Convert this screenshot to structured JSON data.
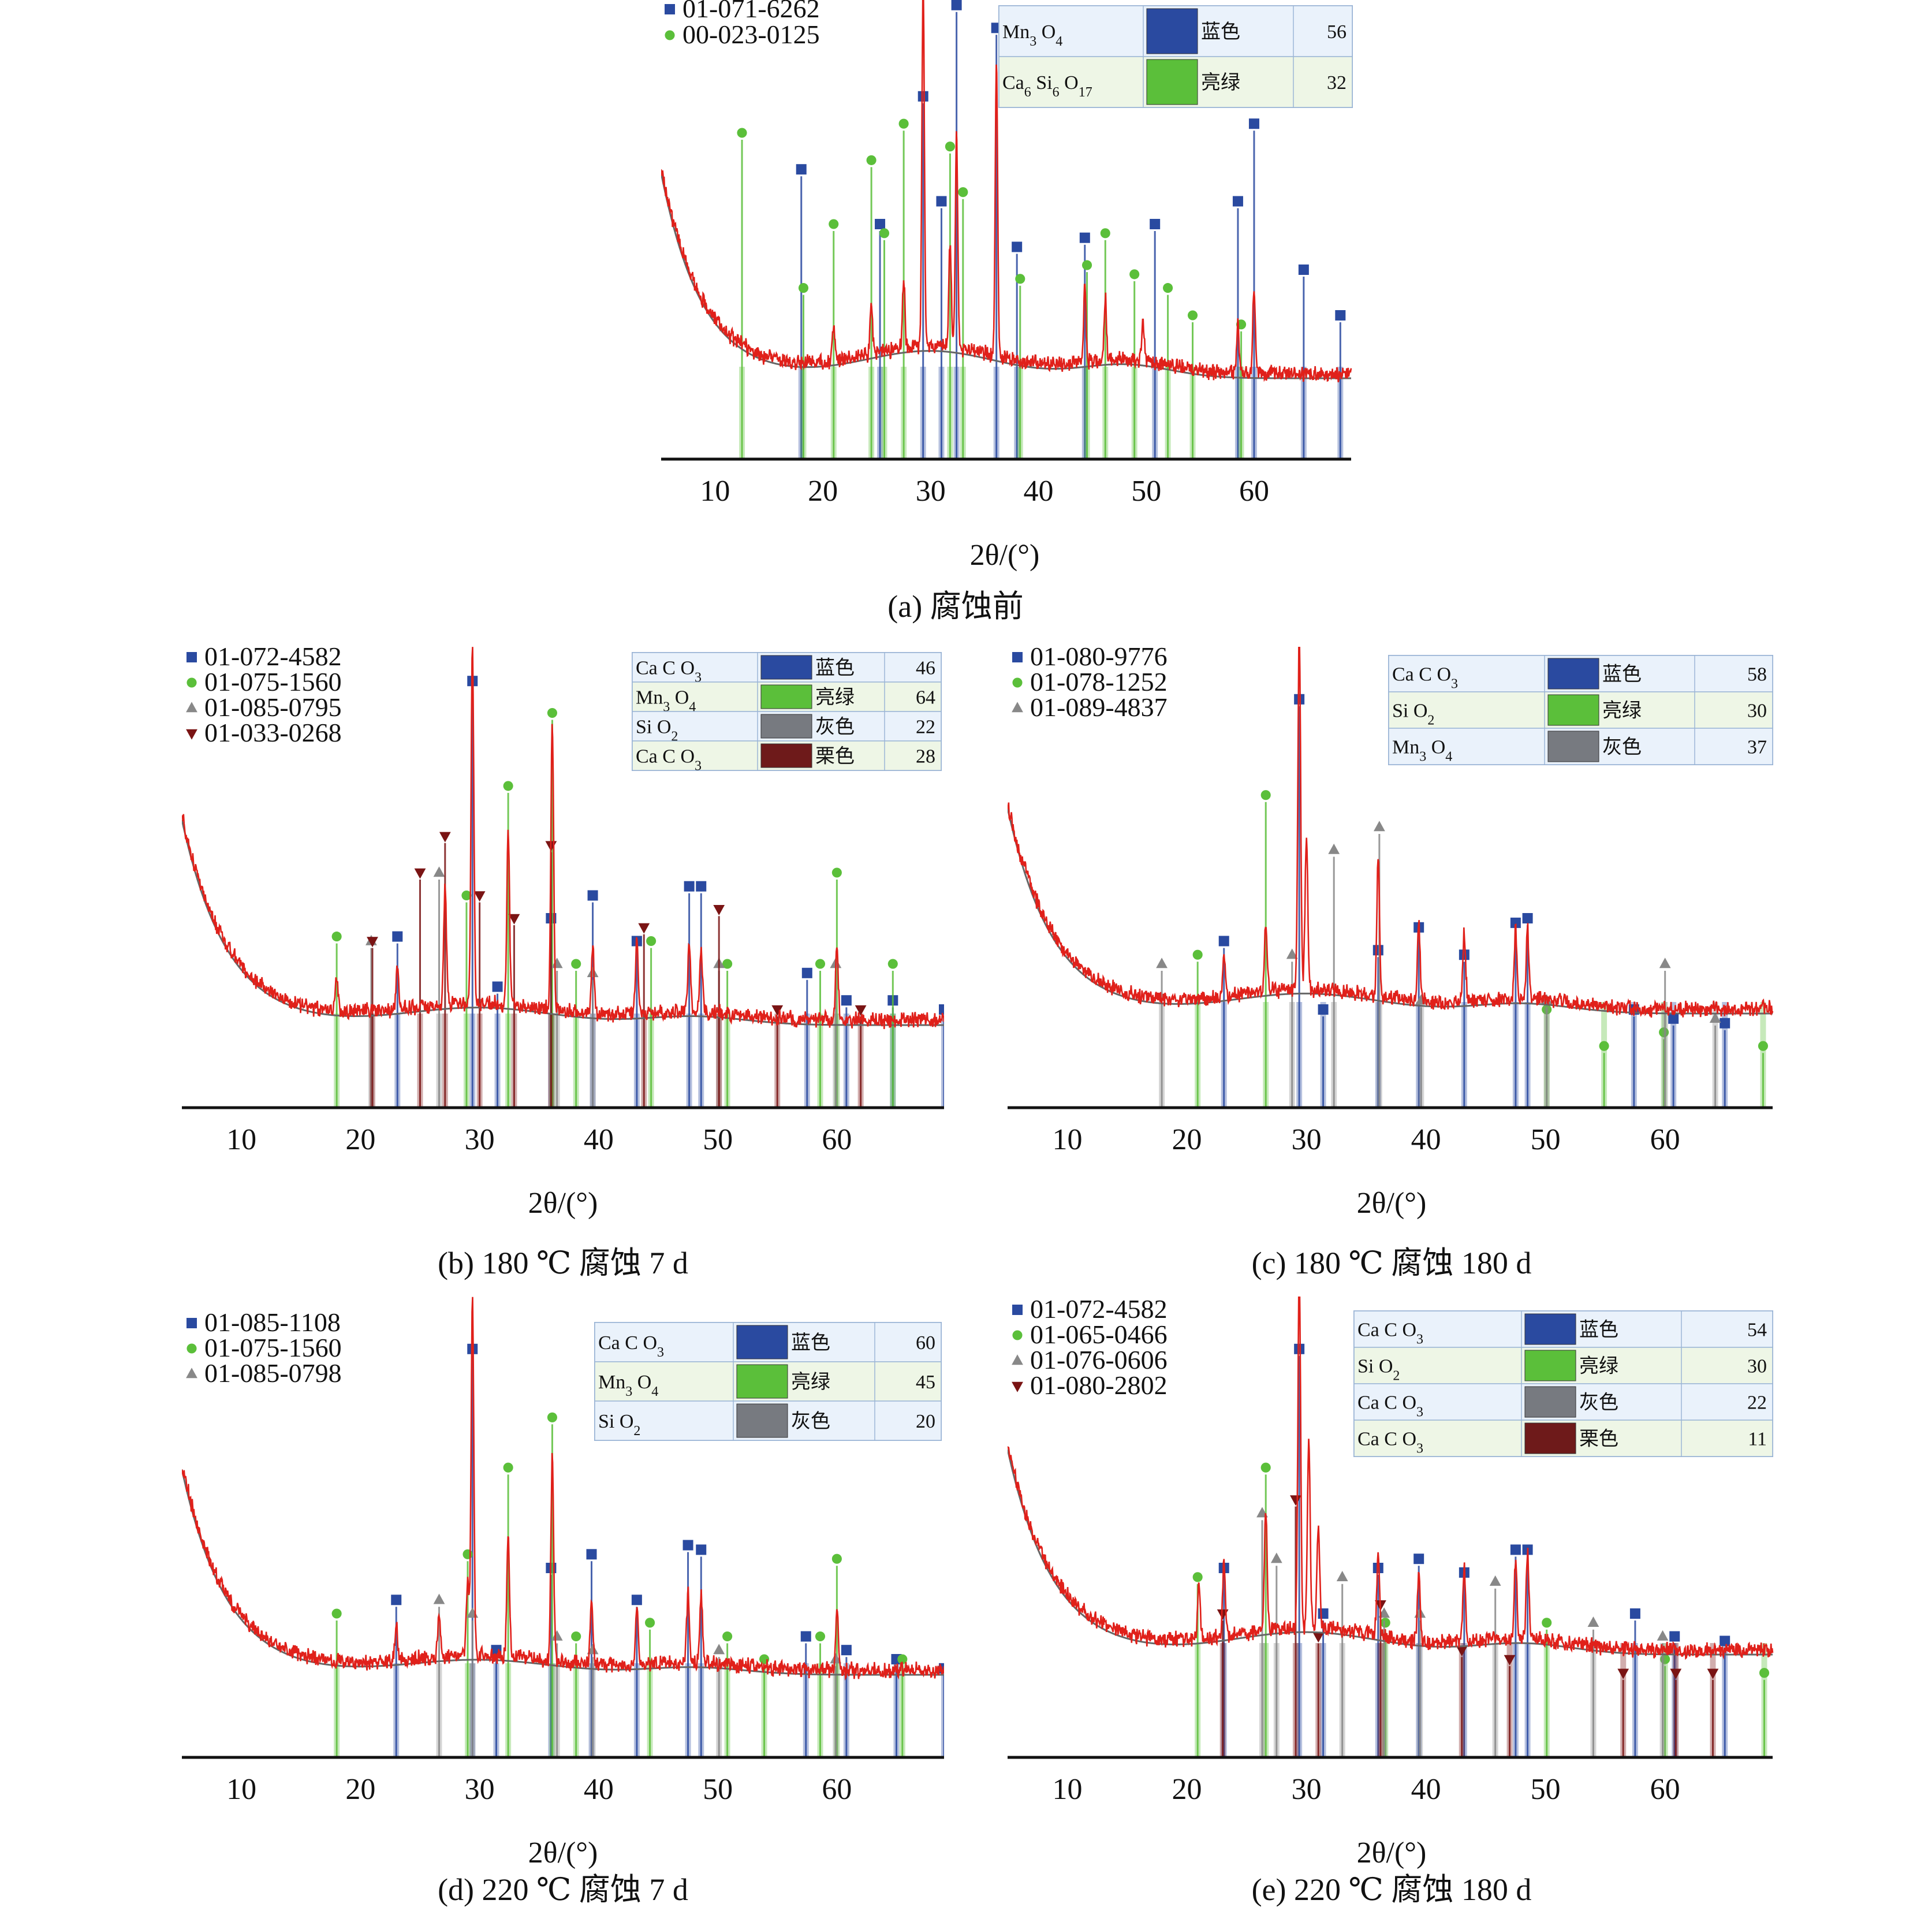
{
  "chart_data": [
    {
      "type": "line",
      "caption": "(a) 腐蚀前",
      "xlabel": "2θ/(°)",
      "xlim": [
        5,
        69
      ],
      "x_ticks": [
        10,
        20,
        30,
        40,
        50,
        60
      ],
      "pattern_refs": [
        "01-071-6262",
        "00-023-0125"
      ],
      "table": [
        {
          "compound": "Mn3 O4",
          "color_name": "蓝色",
          "score": "56",
          "color": "#2a4aa0"
        },
        {
          "compound": "Ca6 Si6 O17",
          "color_name": "亮绿",
          "score": "32",
          "color": "#5bbf3a"
        }
      ],
      "marker_series": [
        {
          "ref": "01-071-6262",
          "shape": "square",
          "color": "#2a4aa0",
          "peaks": [
            [
              18.0,
              0.62
            ],
            [
              25.3,
              0.5
            ],
            [
              29.3,
              0.78
            ],
            [
              31.0,
              0.55
            ],
            [
              32.4,
              0.98
            ],
            [
              36.1,
              0.93
            ],
            [
              38.0,
              0.45
            ],
            [
              44.3,
              0.47
            ],
            [
              50.8,
              0.5
            ],
            [
              58.5,
              0.55
            ],
            [
              60.0,
              0.72
            ],
            [
              64.6,
              0.4
            ],
            [
              68.0,
              0.3
            ]
          ]
        },
        {
          "ref": "00-023-0125",
          "shape": "circle",
          "color": "#5bbf3a",
          "peaks": [
            [
              12.5,
              0.7
            ],
            [
              18.2,
              0.36
            ],
            [
              21.0,
              0.5
            ],
            [
              24.5,
              0.64
            ],
            [
              25.7,
              0.48
            ],
            [
              27.5,
              0.72
            ],
            [
              31.8,
              0.67
            ],
            [
              33.0,
              0.57
            ],
            [
              38.3,
              0.38
            ],
            [
              44.5,
              0.41
            ],
            [
              46.2,
              0.48
            ],
            [
              48.9,
              0.39
            ],
            [
              52.0,
              0.36
            ],
            [
              54.3,
              0.3
            ],
            [
              58.8,
              0.28
            ]
          ]
        }
      ],
      "fluct_peaks": [
        [
          29.3,
          1.05
        ],
        [
          32.4,
          0.62
        ],
        [
          36.1,
          0.85
        ],
        [
          31.8,
          0.3
        ],
        [
          44.3,
          0.22
        ],
        [
          46.2,
          0.18
        ],
        [
          27.5,
          0.2
        ],
        [
          24.5,
          0.15
        ],
        [
          21.0,
          0.1
        ],
        [
          58.5,
          0.15
        ],
        [
          60.0,
          0.25
        ],
        [
          49.7,
          0.12
        ]
      ]
    },
    {
      "type": "line",
      "caption": "(b) 180 ℃ 腐蚀 7 d",
      "xlabel": "2θ/(°)",
      "xlim": [
        5,
        69
      ],
      "x_ticks": [
        10,
        20,
        30,
        40,
        50,
        60
      ],
      "pattern_refs": [
        "01-072-4582",
        "01-075-1560",
        "01-085-0795",
        "01-033-0268"
      ],
      "table": [
        {
          "compound": "Ca C O3",
          "color_name": "蓝色",
          "score": "46",
          "color": "#2a4aa0"
        },
        {
          "compound": "Mn3 O4",
          "color_name": "亮绿",
          "score": "64",
          "color": "#5bbf3a"
        },
        {
          "compound": "Si O2",
          "color_name": "灰色",
          "score": "22",
          "color": "#777a80"
        },
        {
          "compound": "Ca C O3",
          "color_name": "栗色",
          "score": "28",
          "color": "#6e1a1a"
        }
      ],
      "marker_series": [
        {
          "ref": "01-072-4582",
          "shape": "square",
          "color": "#2a4aa0",
          "peaks": [
            [
              23.1,
              0.36
            ],
            [
              29.4,
              0.92
            ],
            [
              31.5,
              0.25
            ],
            [
              36.0,
              0.4
            ],
            [
              39.5,
              0.45
            ],
            [
              43.2,
              0.35
            ],
            [
              47.6,
              0.47
            ],
            [
              48.6,
              0.47
            ],
            [
              57.5,
              0.28
            ],
            [
              60.8,
              0.22
            ],
            [
              64.7,
              0.22
            ],
            [
              69.0,
              0.2
            ]
          ]
        },
        {
          "ref": "01-075-1560",
          "shape": "circle",
          "color": "#5bbf3a",
          "peaks": [
            [
              18.0,
              0.36
            ],
            [
              28.9,
              0.45
            ],
            [
              32.4,
              0.69
            ],
            [
              36.1,
              0.85
            ],
            [
              38.1,
              0.3
            ],
            [
              44.4,
              0.35
            ],
            [
              50.8,
              0.3
            ],
            [
              58.6,
              0.3
            ],
            [
              60.0,
              0.5
            ],
            [
              64.7,
              0.3
            ]
          ]
        },
        {
          "ref": "01-085-0795",
          "shape": "triangle",
          "color": "#888888",
          "peaks": [
            [
              20.9,
              0.35
            ],
            [
              26.6,
              0.5
            ],
            [
              36.5,
              0.3
            ],
            [
              39.5,
              0.28
            ],
            [
              50.1,
              0.3
            ],
            [
              59.9,
              0.3
            ]
          ]
        },
        {
          "ref": "01-033-0268",
          "shape": "triangle-down",
          "color": "#7a1414",
          "peaks": [
            [
              21.0,
              0.35
            ],
            [
              25.0,
              0.5
            ],
            [
              27.1,
              0.58
            ],
            [
              30.0,
              0.45
            ],
            [
              32.9,
              0.4
            ],
            [
              36.0,
              0.56
            ],
            [
              43.8,
              0.38
            ],
            [
              50.1,
              0.42
            ],
            [
              55.0,
              0.2
            ],
            [
              62.0,
              0.2
            ]
          ]
        }
      ],
      "fluct_peaks": [
        [
          29.4,
          1.05
        ],
        [
          36.1,
          0.85
        ],
        [
          32.4,
          0.5
        ],
        [
          27.1,
          0.35
        ],
        [
          39.5,
          0.2
        ],
        [
          43.2,
          0.22
        ],
        [
          47.6,
          0.2
        ],
        [
          48.6,
          0.18
        ],
        [
          60.0,
          0.22
        ],
        [
          23.1,
          0.12
        ],
        [
          18.0,
          0.1
        ]
      ]
    },
    {
      "type": "line",
      "caption": "(c) 180 ℃ 腐蚀 180 d",
      "xlabel": "2θ/(°)",
      "xlim": [
        5,
        69
      ],
      "x_ticks": [
        10,
        20,
        30,
        40,
        50,
        60
      ],
      "pattern_refs": [
        "01-080-9776",
        "01-078-1252",
        "01-089-4837"
      ],
      "table": [
        {
          "compound": "Ca C O3",
          "color_name": "蓝色",
          "score": "58",
          "color": "#2a4aa0"
        },
        {
          "compound": "Si O2",
          "color_name": "亮绿",
          "score": "30",
          "color": "#5bbf3a"
        },
        {
          "compound": "Mn3 O4",
          "color_name": "灰色",
          "score": "37",
          "color": "#777a80"
        }
      ],
      "marker_series": [
        {
          "ref": "01-080-9776",
          "shape": "square",
          "color": "#2a4aa0",
          "peaks": [
            [
              23.1,
              0.35
            ],
            [
              29.4,
              0.88
            ],
            [
              31.4,
              0.2
            ],
            [
              36.0,
              0.33
            ],
            [
              39.4,
              0.38
            ],
            [
              43.2,
              0.32
            ],
            [
              47.5,
              0.39
            ],
            [
              48.5,
              0.4
            ],
            [
              57.4,
              0.2
            ],
            [
              60.7,
              0.18
            ],
            [
              65.0,
              0.17
            ]
          ]
        },
        {
          "ref": "01-078-1252",
          "shape": "circle",
          "color": "#5bbf3a",
          "peaks": [
            [
              20.9,
              0.32
            ],
            [
              26.6,
              0.67
            ],
            [
              50.1,
              0.2
            ],
            [
              54.9,
              0.12
            ],
            [
              59.9,
              0.15
            ],
            [
              68.2,
              0.12
            ]
          ]
        },
        {
          "ref": "01-089-4837",
          "shape": "triangle",
          "color": "#888888",
          "peaks": [
            [
              17.9,
              0.3
            ],
            [
              28.8,
              0.32
            ],
            [
              32.3,
              0.55
            ],
            [
              36.1,
              0.6
            ],
            [
              39.6,
              0.22
            ],
            [
              50.1,
              0.22
            ],
            [
              60.0,
              0.3
            ],
            [
              64.2,
              0.18
            ]
          ]
        }
      ],
      "fluct_peaks": [
        [
          29.4,
          1.05
        ],
        [
          30.0,
          0.45
        ],
        [
          36.0,
          0.4
        ],
        [
          26.6,
          0.2
        ],
        [
          39.4,
          0.22
        ],
        [
          43.2,
          0.2
        ],
        [
          47.5,
          0.2
        ],
        [
          48.5,
          0.2
        ],
        [
          23.1,
          0.12
        ]
      ]
    },
    {
      "type": "line",
      "caption": "(d) 220 ℃ 腐蚀 7 d",
      "xlabel": "2θ/(°)",
      "xlim": [
        5,
        69
      ],
      "x_ticks": [
        10,
        20,
        30,
        40,
        50,
        60
      ],
      "pattern_refs": [
        "01-085-1108",
        "01-075-1560",
        "01-085-0798"
      ],
      "table": [
        {
          "compound": "Ca C O3",
          "color_name": "蓝色",
          "score": "60",
          "color": "#2a4aa0"
        },
        {
          "compound": "Mn3 O4",
          "color_name": "亮绿",
          "score": "45",
          "color": "#5bbf3a"
        },
        {
          "compound": "Si O2",
          "color_name": "灰色",
          "score": "20",
          "color": "#777a80"
        }
      ],
      "marker_series": [
        {
          "ref": "01-085-1108",
          "shape": "square",
          "color": "#2a4aa0",
          "peaks": [
            [
              23.0,
              0.33
            ],
            [
              29.4,
              0.88
            ],
            [
              31.4,
              0.22
            ],
            [
              36.0,
              0.4
            ],
            [
              39.4,
              0.43
            ],
            [
              43.2,
              0.33
            ],
            [
              47.5,
              0.45
            ],
            [
              48.6,
              0.44
            ],
            [
              57.4,
              0.25
            ],
            [
              60.8,
              0.22
            ],
            [
              65.0,
              0.2
            ],
            [
              69.0,
              0.18
            ]
          ]
        },
        {
          "ref": "01-075-1560",
          "shape": "circle",
          "color": "#5bbf3a",
          "peaks": [
            [
              18.0,
              0.3
            ],
            [
              29.0,
              0.43
            ],
            [
              32.4,
              0.62
            ],
            [
              36.1,
              0.73
            ],
            [
              38.1,
              0.25
            ],
            [
              44.3,
              0.28
            ],
            [
              50.8,
              0.25
            ],
            [
              53.9,
              0.2
            ],
            [
              58.6,
              0.25
            ],
            [
              60.0,
              0.42
            ],
            [
              65.5,
              0.2
            ]
          ]
        },
        {
          "ref": "01-085-0798",
          "shape": "triangle",
          "color": "#888888",
          "peaks": [
            [
              26.6,
              0.33
            ],
            [
              29.4,
              0.3
            ],
            [
              36.5,
              0.25
            ],
            [
              39.5,
              0.22
            ],
            [
              50.1,
              0.22
            ],
            [
              59.9,
              0.2
            ]
          ]
        }
      ],
      "fluct_peaks": [
        [
          29.4,
          1.05
        ],
        [
          36.1,
          0.6
        ],
        [
          32.4,
          0.35
        ],
        [
          29.0,
          0.22
        ],
        [
          39.4,
          0.2
        ],
        [
          43.2,
          0.18
        ],
        [
          47.5,
          0.2
        ],
        [
          48.6,
          0.2
        ],
        [
          60.0,
          0.18
        ],
        [
          23.0,
          0.1
        ],
        [
          26.6,
          0.12
        ]
      ]
    },
    {
      "type": "line",
      "caption": "(e) 220 ℃ 腐蚀 180 d",
      "xlabel": "2θ/(°)",
      "xlim": [
        5,
        69
      ],
      "x_ticks": [
        10,
        20,
        30,
        40,
        50,
        60
      ],
      "pattern_refs": [
        "01-072-4582",
        "01-065-0466",
        "01-076-0606",
        "01-080-2802"
      ],
      "table": [
        {
          "compound": "Ca C O3",
          "color_name": "蓝色",
          "score": "54",
          "color": "#2a4aa0"
        },
        {
          "compound": "Si O2",
          "color_name": "亮绿",
          "score": "30",
          "color": "#5bbf3a"
        },
        {
          "compound": "Ca C O3",
          "color_name": "灰色",
          "score": "22",
          "color": "#777a80"
        },
        {
          "compound": "Ca C O3",
          "color_name": "栗色",
          "score": "11",
          "color": "#6e1a1a"
        }
      ],
      "marker_series": [
        {
          "ref": "01-072-4582",
          "shape": "square",
          "color": "#2a4aa0",
          "peaks": [
            [
              23.1,
              0.4
            ],
            [
              29.4,
              0.88
            ],
            [
              31.4,
              0.3
            ],
            [
              36.0,
              0.4
            ],
            [
              39.4,
              0.42
            ],
            [
              43.2,
              0.39
            ],
            [
              47.5,
              0.44
            ],
            [
              48.5,
              0.44
            ],
            [
              57.5,
              0.3
            ],
            [
              60.8,
              0.25
            ],
            [
              65.0,
              0.24
            ]
          ]
        },
        {
          "ref": "01-065-0466",
          "shape": "circle",
          "color": "#5bbf3a",
          "peaks": [
            [
              20.9,
              0.38
            ],
            [
              26.6,
              0.62
            ],
            [
              36.6,
              0.28
            ],
            [
              50.1,
              0.28
            ],
            [
              60.0,
              0.2
            ],
            [
              68.3,
              0.17
            ]
          ]
        },
        {
          "ref": "01-076-0606",
          "shape": "triangle",
          "color": "#888888",
          "peaks": [
            [
              26.3,
              0.52
            ],
            [
              27.5,
              0.42
            ],
            [
              33.0,
              0.38
            ],
            [
              36.5,
              0.3
            ],
            [
              39.5,
              0.3
            ],
            [
              45.8,
              0.37
            ],
            [
              54.0,
              0.28
            ],
            [
              59.8,
              0.25
            ]
          ]
        },
        {
          "ref": "01-080-2802",
          "shape": "triangle-down",
          "color": "#7a1414",
          "peaks": [
            [
              23.0,
              0.3
            ],
            [
              29.1,
              0.55
            ],
            [
              31.0,
              0.25
            ],
            [
              36.2,
              0.32
            ],
            [
              43.0,
              0.22
            ],
            [
              47.0,
              0.2
            ],
            [
              56.5,
              0.17
            ],
            [
              60.9,
              0.17
            ],
            [
              64.0,
              0.17
            ]
          ]
        }
      ],
      "fluct_peaks": [
        [
          29.4,
          1.05
        ],
        [
          30.2,
          0.55
        ],
        [
          31.0,
          0.3
        ],
        [
          26.6,
          0.35
        ],
        [
          36.0,
          0.25
        ],
        [
          23.1,
          0.22
        ],
        [
          39.4,
          0.2
        ],
        [
          43.2,
          0.22
        ],
        [
          47.5,
          0.22
        ],
        [
          48.5,
          0.25
        ],
        [
          21.0,
          0.15
        ]
      ]
    }
  ]
}
